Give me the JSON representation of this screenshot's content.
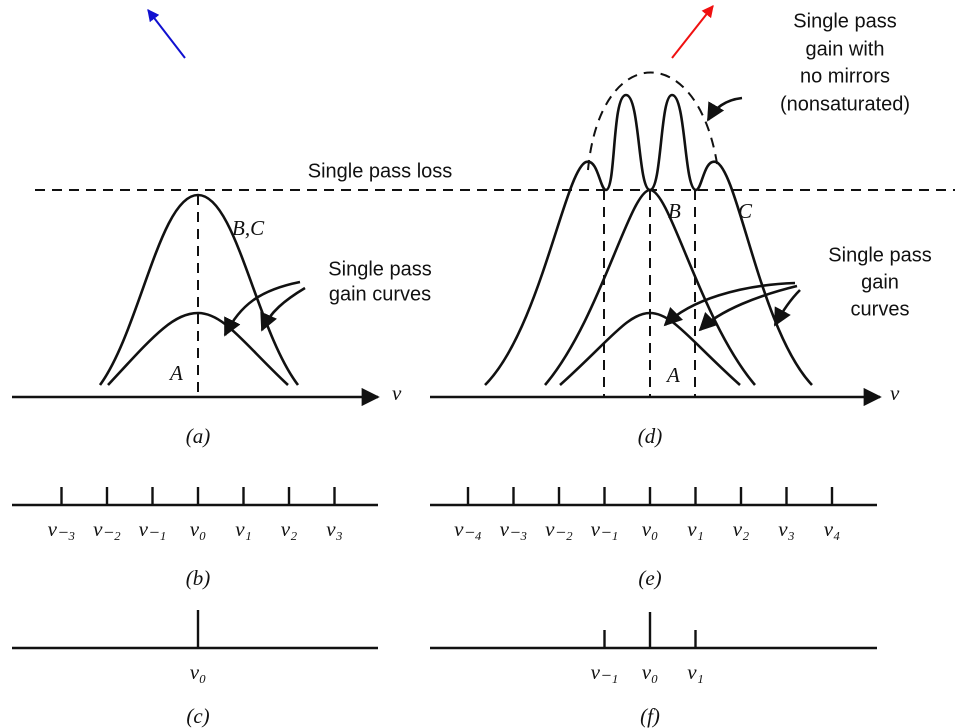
{
  "panels": {
    "a": {
      "label": "(a)",
      "loss_label": "Single pass loss",
      "curve_labels": [
        "B,C",
        "A"
      ],
      "gain_label": [
        "Single pass",
        "gain curves"
      ],
      "axis_label": "ν"
    },
    "d": {
      "label": "(d)",
      "gain_no_mirrors": [
        "Single pass",
        "gain with",
        "no mirrors",
        "(nonsaturated)"
      ],
      "curve_labels": [
        "B",
        "C",
        "A"
      ],
      "gain_label": [
        "Single pass",
        "gain",
        "curves"
      ],
      "axis_label": "ν"
    },
    "b": {
      "label": "(b)",
      "ticks": [
        "ν₋₃",
        "ν₋₂",
        "ν₋₁",
        "ν₀",
        "ν₁",
        "ν₂",
        "ν₃"
      ]
    },
    "e": {
      "label": "(e)",
      "ticks": [
        "ν₋₄",
        "ν₋₃",
        "ν₋₂",
        "ν₋₁",
        "ν₀",
        "ν₁",
        "ν₂",
        "ν₃",
        "ν₄"
      ]
    },
    "c": {
      "label": "(c)",
      "ticks": [
        "ν₀"
      ]
    },
    "f": {
      "label": "(f)",
      "ticks": [
        "ν₋₁",
        "ν₀",
        "ν₁"
      ]
    }
  }
}
